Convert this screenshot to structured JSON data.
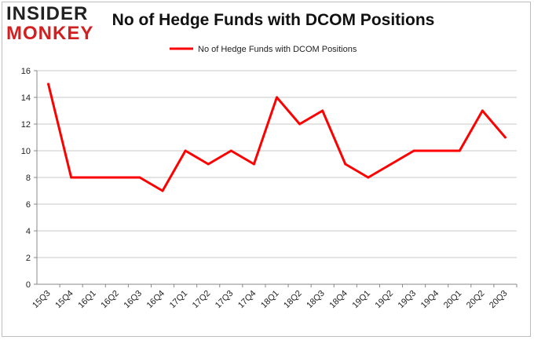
{
  "logo": {
    "line1": "INSIDER",
    "line2": "MONKEY"
  },
  "chart_data": {
    "type": "line",
    "title": "No of Hedge Funds with DCOM Positions",
    "xlabel": "",
    "ylabel": "",
    "categories": [
      "15Q3",
      "15Q4",
      "16Q1",
      "16Q2",
      "16Q3",
      "16Q4",
      "17Q1",
      "17Q2",
      "17Q3",
      "17Q4",
      "18Q1",
      "18Q2",
      "18Q3",
      "18Q4",
      "19Q1",
      "19Q2",
      "19Q3",
      "19Q4",
      "20Q1",
      "20Q2",
      "20Q3"
    ],
    "series": [
      {
        "name": "No of Hedge Funds with DCOM Positions",
        "values": [
          15,
          8,
          8,
          8,
          8,
          7,
          10,
          9,
          10,
          9,
          14,
          12,
          13,
          9,
          8,
          9,
          10,
          10,
          10,
          13,
          11
        ]
      }
    ],
    "ylim": [
      0,
      16
    ],
    "yticks": [
      0,
      2,
      4,
      6,
      8,
      10,
      12,
      14,
      16
    ],
    "grid": true,
    "legend_position": "top-center",
    "colors": {
      "line": "#ff0000",
      "grid": "#c8c8c8",
      "axis": "#888888"
    }
  }
}
